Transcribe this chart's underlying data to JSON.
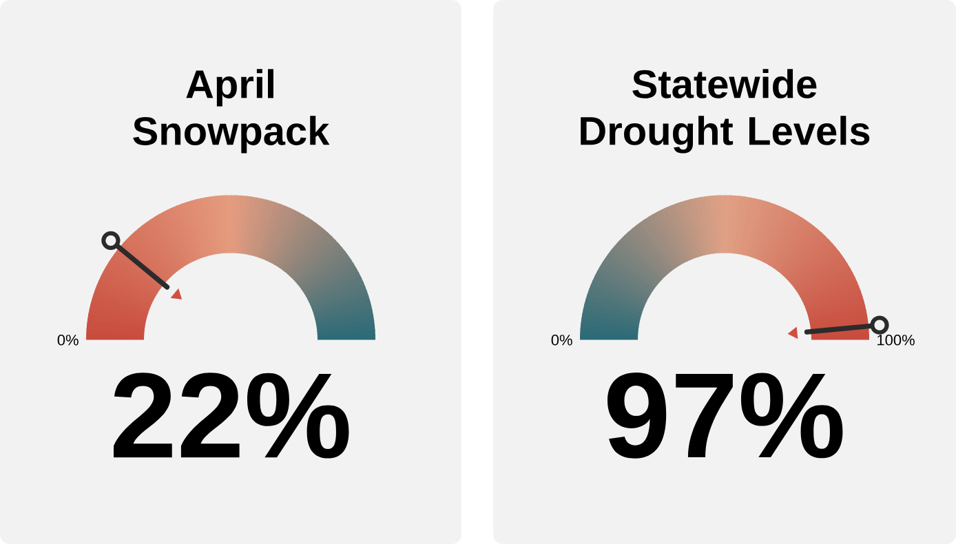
{
  "chart_data": [
    {
      "type": "other",
      "title": "April Snowpack",
      "values": [
        22
      ],
      "annotations": [
        "0%"
      ],
      "value_labels": [
        "22%"
      ]
    },
    {
      "type": "other",
      "title": "Statewide Drought Levels",
      "values": [
        97
      ],
      "annotations": [
        "0%",
        "100%"
      ],
      "value_labels": [
        "97%"
      ]
    }
  ]
}
